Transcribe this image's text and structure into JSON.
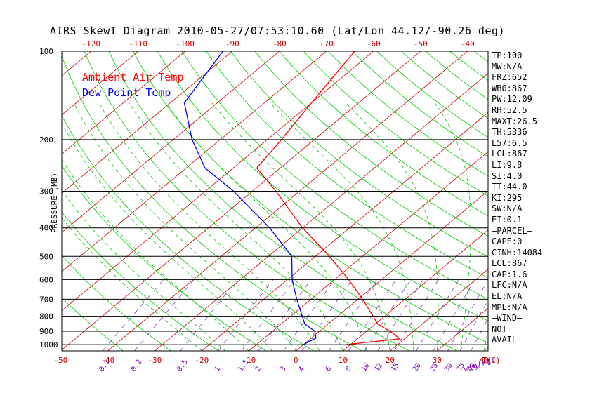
{
  "title": "AIRS SkewT Diagram 2010-05-27/07:53:10.60 (Lat/Lon 44.12/-90.26 deg)",
  "chart_data": {
    "type": "line",
    "title": "AIRS SkewT Diagram 2010-05-27/07:53:10.60 (Lat/Lon 44.12/-90.26 deg)",
    "ylabel": "PRESSURE (MB)",
    "y_scale": "log",
    "ylim": [
      1050,
      100
    ],
    "y_ticks": [
      100,
      200,
      300,
      400,
      500,
      600,
      700,
      800,
      900,
      1000
    ],
    "top_temp_label": "T(C)",
    "top_temp_ticks": [
      -120,
      -110,
      -100,
      -90,
      -80,
      -70,
      -60,
      -50,
      -40
    ],
    "bottom_temp_ticks": [
      -50,
      -40,
      -30,
      -20,
      -10,
      0,
      10,
      20,
      30,
      40
    ],
    "mixing_ratio_label": "w(g/kg)",
    "mixing_ratio_ticks": [
      "0.1",
      "0.2",
      "0.5",
      "1",
      "1.5",
      "2",
      "3",
      "4",
      "6",
      "8",
      "10",
      "12",
      "15",
      "20",
      "25",
      "30",
      "35",
      "40"
    ],
    "legend": [
      "Ambient Air Temp",
      "Dew Point Temp"
    ],
    "series": [
      {
        "name": "Ambient Air Temp",
        "color": "#ff0000",
        "points": [
          [
            1000,
            9
          ],
          [
            955,
            19
          ],
          [
            900,
            15
          ],
          [
            850,
            10.5
          ],
          [
            700,
            1
          ],
          [
            600,
            -7
          ],
          [
            500,
            -17
          ],
          [
            400,
            -30
          ],
          [
            300,
            -45
          ],
          [
            250,
            -55
          ],
          [
            200,
            -57
          ],
          [
            150,
            -60
          ],
          [
            100,
            -64
          ]
        ]
      },
      {
        "name": "Dew Point Temp",
        "color": "#0000ff",
        "points": [
          [
            1000,
            0
          ],
          [
            950,
            1
          ],
          [
            900,
            -1
          ],
          [
            850,
            -5
          ],
          [
            700,
            -13
          ],
          [
            600,
            -19
          ],
          [
            500,
            -25
          ],
          [
            400,
            -37
          ],
          [
            300,
            -54
          ],
          [
            250,
            -66
          ],
          [
            200,
            -76
          ],
          [
            150,
            -87
          ],
          [
            100,
            -92
          ]
        ]
      }
    ],
    "grid": true
  },
  "stats": [
    "TP:100",
    "MW:N/A",
    "FRZ:652",
    "WB0:867",
    "PW:12.09",
    "RH:52.5",
    "MAXT:26.5",
    "TH:5336",
    "L57:6.5",
    "LCL:867",
    "LI:9.8",
    "SI:4.0",
    "TT:44.0",
    "KI:295",
    "SW:N/A",
    "EI:0.1",
    "–PARCEL–",
    "CAPE:0",
    "CINH:14084",
    "LCL:867",
    "CAP:1.6",
    "LFC:N/A",
    "EL:N/A",
    "MPL:N/A",
    "–WIND–",
    " NOT",
    " AVAIL"
  ],
  "colors": {
    "temp_line": "#ff0000",
    "dew_line": "#0000ff",
    "isotherm": "#cc0000",
    "dry_adiabat": "#00cc00",
    "moist_adiabat": "#00cc00",
    "mixing_ratio": "#7f3fbf",
    "axis_label": "#cc0000",
    "mixing_label": "#7f00bf"
  }
}
